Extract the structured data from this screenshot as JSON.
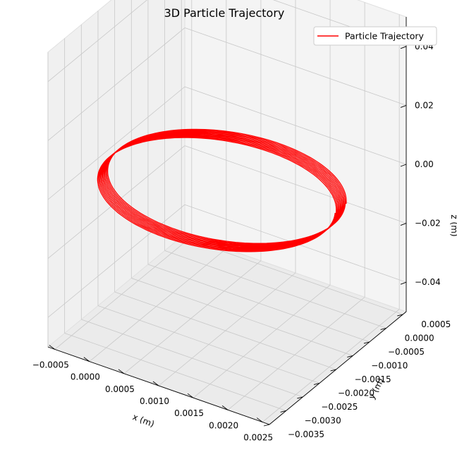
{
  "chart_data": {
    "type": "line3d",
    "title": "3D Particle Trajectory",
    "xlabel": "x (m)",
    "ylabel": "y (m)",
    "zlabel": "z (m)",
    "xlim": [
      -0.0006,
      0.0026
    ],
    "ylim": [
      -0.0035,
      0.0006
    ],
    "zlim": [
      -0.05,
      0.05
    ],
    "xticks": [
      -0.0005,
      0.0,
      0.0005,
      0.001,
      0.0015,
      0.002,
      0.0025
    ],
    "xtick_labels": [
      "−0.0005",
      "0.0000",
      "0.0005",
      "0.0010",
      "0.0015",
      "0.0020",
      "0.0025"
    ],
    "yticks": [
      0.0005,
      0.0,
      -0.0005,
      -0.001,
      -0.0015,
      -0.002,
      -0.0025,
      -0.003,
      -0.0035
    ],
    "ytick_labels": [
      "0.0005",
      "0.0000",
      "−0.0005",
      "−0.0010",
      "−0.0015",
      "−0.0020",
      "−0.0025",
      "−0.0030",
      "−0.0035"
    ],
    "zticks": [
      0.04,
      0.02,
      0.0,
      -0.02,
      -0.04
    ],
    "ztick_labels": [
      "0.04",
      "0.02",
      "0.00",
      "−0.02",
      "−0.04"
    ],
    "series": [
      {
        "name": "Particle Trajectory",
        "color": "#ff0000",
        "center_x": 0.00105,
        "center_y": -0.00155,
        "radius": 0.00155,
        "turns": 11,
        "z_values": [
          0.0
        ],
        "drift_y_per_turn": 3e-05
      }
    ],
    "legend": {
      "placement": "top-right",
      "entries": [
        "Particle Trajectory"
      ]
    },
    "grid": true
  }
}
